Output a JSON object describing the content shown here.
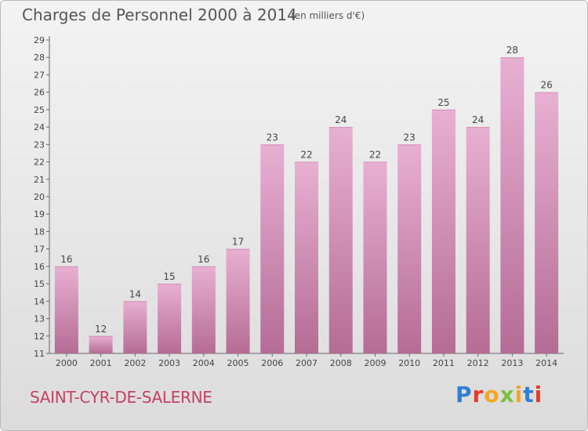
{
  "header": {
    "title": "Charges de Personnel 2000 à 2014",
    "unit": "(en milliers d'€)"
  },
  "footer": {
    "town": "SAINT-CYR-DE-SALERNE",
    "logo_text": "Proxiti",
    "logo_colors": [
      "#2f7fd6",
      "#e43b2c",
      "#f5a623",
      "#7bc043",
      "#f5a623",
      "#2f7fd6",
      "#e43b2c"
    ]
  },
  "colors": {
    "bar_light": "#e8b0d2",
    "bar_dark": "#b56c94",
    "title": "#555555",
    "town": "#c4406a"
  },
  "chart_data": {
    "type": "bar",
    "title": "Charges de Personnel 2000 à 2014",
    "subtitle": "(en milliers d'€)",
    "categories": [
      "2000",
      "2001",
      "2002",
      "2003",
      "2004",
      "2005",
      "2006",
      "2007",
      "2008",
      "2009",
      "2010",
      "2011",
      "2012",
      "2013",
      "2014"
    ],
    "values": [
      16,
      12,
      14,
      15,
      16,
      17,
      23,
      22,
      24,
      22,
      23,
      25,
      24,
      28,
      26
    ],
    "ylim": [
      11,
      29
    ],
    "yticks": [
      11,
      12,
      13,
      14,
      15,
      16,
      17,
      18,
      19,
      20,
      21,
      22,
      23,
      24,
      25,
      26,
      27,
      28,
      29
    ],
    "grid": false,
    "legend": "none"
  }
}
